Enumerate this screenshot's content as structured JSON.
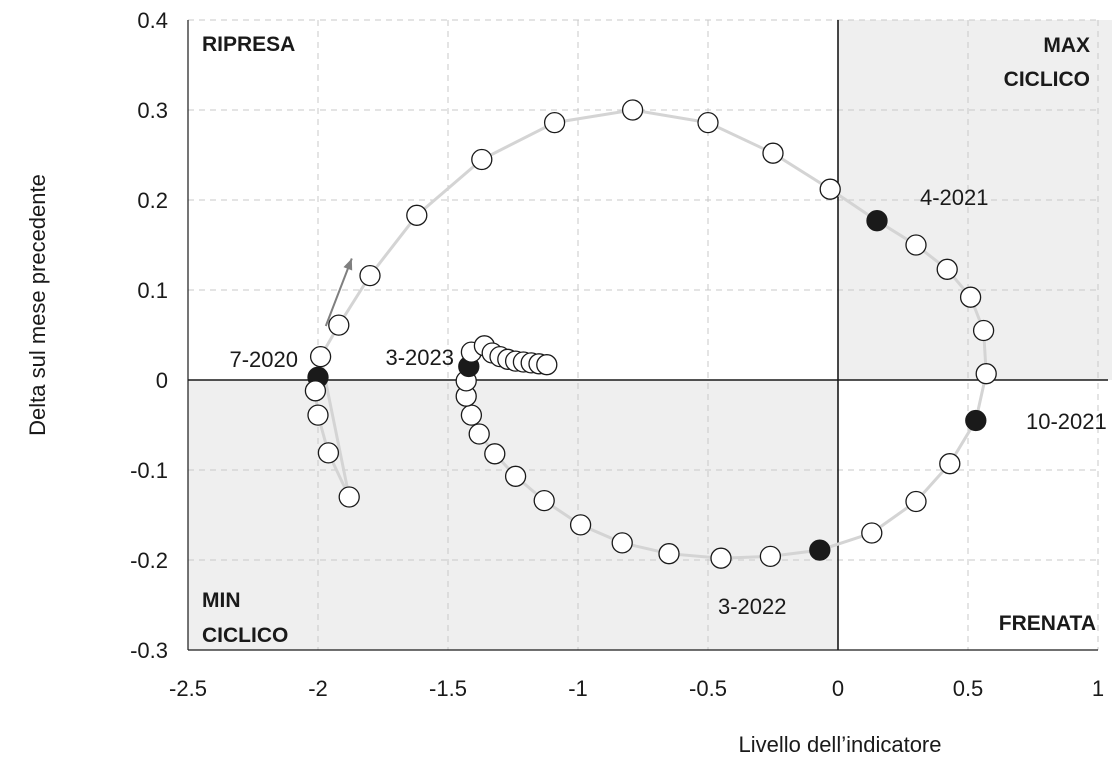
{
  "chart_data": {
    "type": "scatter",
    "xlabel": "Livello dell’indicatore",
    "ylabel": "Delta sul mese precedente",
    "xlim": [
      -2.5,
      1
    ],
    "ylim": [
      -0.3,
      0.4
    ],
    "xticks": [
      -2.5,
      -2,
      -1.5,
      -1,
      -0.5,
      0,
      0.5,
      1
    ],
    "yticks": [
      -0.3,
      -0.2,
      -0.1,
      0,
      0.1,
      0.2,
      0.3,
      0.4
    ],
    "x_tick_labels": [
      "-2.5",
      "-2",
      "-1.5",
      "-1",
      "-0.5",
      "0",
      "0.5",
      "1"
    ],
    "y_tick_labels": [
      "-0.3",
      "-0.2",
      "-0.1",
      "0",
      "0.1",
      "0.2",
      "0.3",
      "0.4"
    ],
    "grid": true,
    "shaded_quadrants": [
      "top-right",
      "bottom-left"
    ],
    "colors": {
      "shade": "#efefef",
      "path": "#d4d4d4",
      "grid": "#c8c8c8",
      "highlight": "#1a1a1a",
      "marker_edge": "#1a1a1a",
      "marker_fill": "#ffffff",
      "arrow": "#7f7f7f"
    },
    "quadrant_labels": [
      {
        "text": "RIPRESA",
        "position": "top-left"
      },
      {
        "text": "MAX",
        "position": "top-right"
      },
      {
        "text": "CICLICO",
        "position": "top-right"
      },
      {
        "text": "MIN",
        "position": "bottom-left"
      },
      {
        "text": "CICLICO",
        "position": "bottom-left"
      },
      {
        "text": "FRENATA",
        "position": "bottom-right"
      }
    ],
    "points": [
      {
        "x": -2.0,
        "y": 0.003
      },
      {
        "x": -2.01,
        "y": -0.012
      },
      {
        "x": -2.0,
        "y": -0.039
      },
      {
        "x": -1.96,
        "y": -0.081
      },
      {
        "x": -1.88,
        "y": -0.13
      },
      {
        "x": -1.99,
        "y": 0.026
      },
      {
        "x": -1.92,
        "y": 0.061
      },
      {
        "x": -1.8,
        "y": 0.116
      },
      {
        "x": -1.62,
        "y": 0.183
      },
      {
        "x": -1.37,
        "y": 0.245
      },
      {
        "x": -1.09,
        "y": 0.286
      },
      {
        "x": -0.79,
        "y": 0.3
      },
      {
        "x": -0.5,
        "y": 0.286
      },
      {
        "x": -0.25,
        "y": 0.252
      },
      {
        "x": -0.03,
        "y": 0.212
      },
      {
        "x": 0.15,
        "y": 0.177
      },
      {
        "x": 0.3,
        "y": 0.15
      },
      {
        "x": 0.42,
        "y": 0.123
      },
      {
        "x": 0.51,
        "y": 0.092
      },
      {
        "x": 0.56,
        "y": 0.055
      },
      {
        "x": 0.57,
        "y": 0.007
      },
      {
        "x": 0.53,
        "y": -0.045
      },
      {
        "x": 0.43,
        "y": -0.093
      },
      {
        "x": 0.3,
        "y": -0.135
      },
      {
        "x": 0.13,
        "y": -0.17
      },
      {
        "x": -0.07,
        "y": -0.189
      },
      {
        "x": -0.26,
        "y": -0.196
      },
      {
        "x": -0.45,
        "y": -0.198
      },
      {
        "x": -0.65,
        "y": -0.193
      },
      {
        "x": -0.83,
        "y": -0.181
      },
      {
        "x": -0.99,
        "y": -0.161
      },
      {
        "x": -1.13,
        "y": -0.134
      },
      {
        "x": -1.24,
        "y": -0.107
      },
      {
        "x": -1.32,
        "y": -0.082
      },
      {
        "x": -1.38,
        "y": -0.06
      },
      {
        "x": -1.41,
        "y": -0.039
      },
      {
        "x": -1.43,
        "y": -0.018
      },
      {
        "x": -1.43,
        "y": -0.001
      },
      {
        "x": -1.42,
        "y": 0.015
      },
      {
        "x": -1.41,
        "y": 0.031
      },
      {
        "x": -1.36,
        "y": 0.038
      },
      {
        "x": -1.33,
        "y": 0.03
      },
      {
        "x": -1.3,
        "y": 0.026
      },
      {
        "x": -1.27,
        "y": 0.023
      },
      {
        "x": -1.24,
        "y": 0.021
      },
      {
        "x": -1.21,
        "y": 0.02
      },
      {
        "x": -1.18,
        "y": 0.019
      },
      {
        "x": -1.15,
        "y": 0.018
      },
      {
        "x": -1.12,
        "y": 0.017
      }
    ],
    "highlighted": [
      {
        "x": -2.0,
        "y": 0.003,
        "label": "7-2020"
      },
      {
        "x": 0.15,
        "y": 0.177,
        "label": "4-2021"
      },
      {
        "x": 0.53,
        "y": -0.045,
        "label": "10-2021"
      },
      {
        "x": -0.07,
        "y": -0.189,
        "label": "3-2022"
      },
      {
        "x": -1.42,
        "y": 0.015,
        "label": "3-2023"
      }
    ],
    "direction_arrow": {
      "from": [
        -1.97,
        0.06
      ],
      "to": [
        -1.87,
        0.135
      ]
    }
  }
}
